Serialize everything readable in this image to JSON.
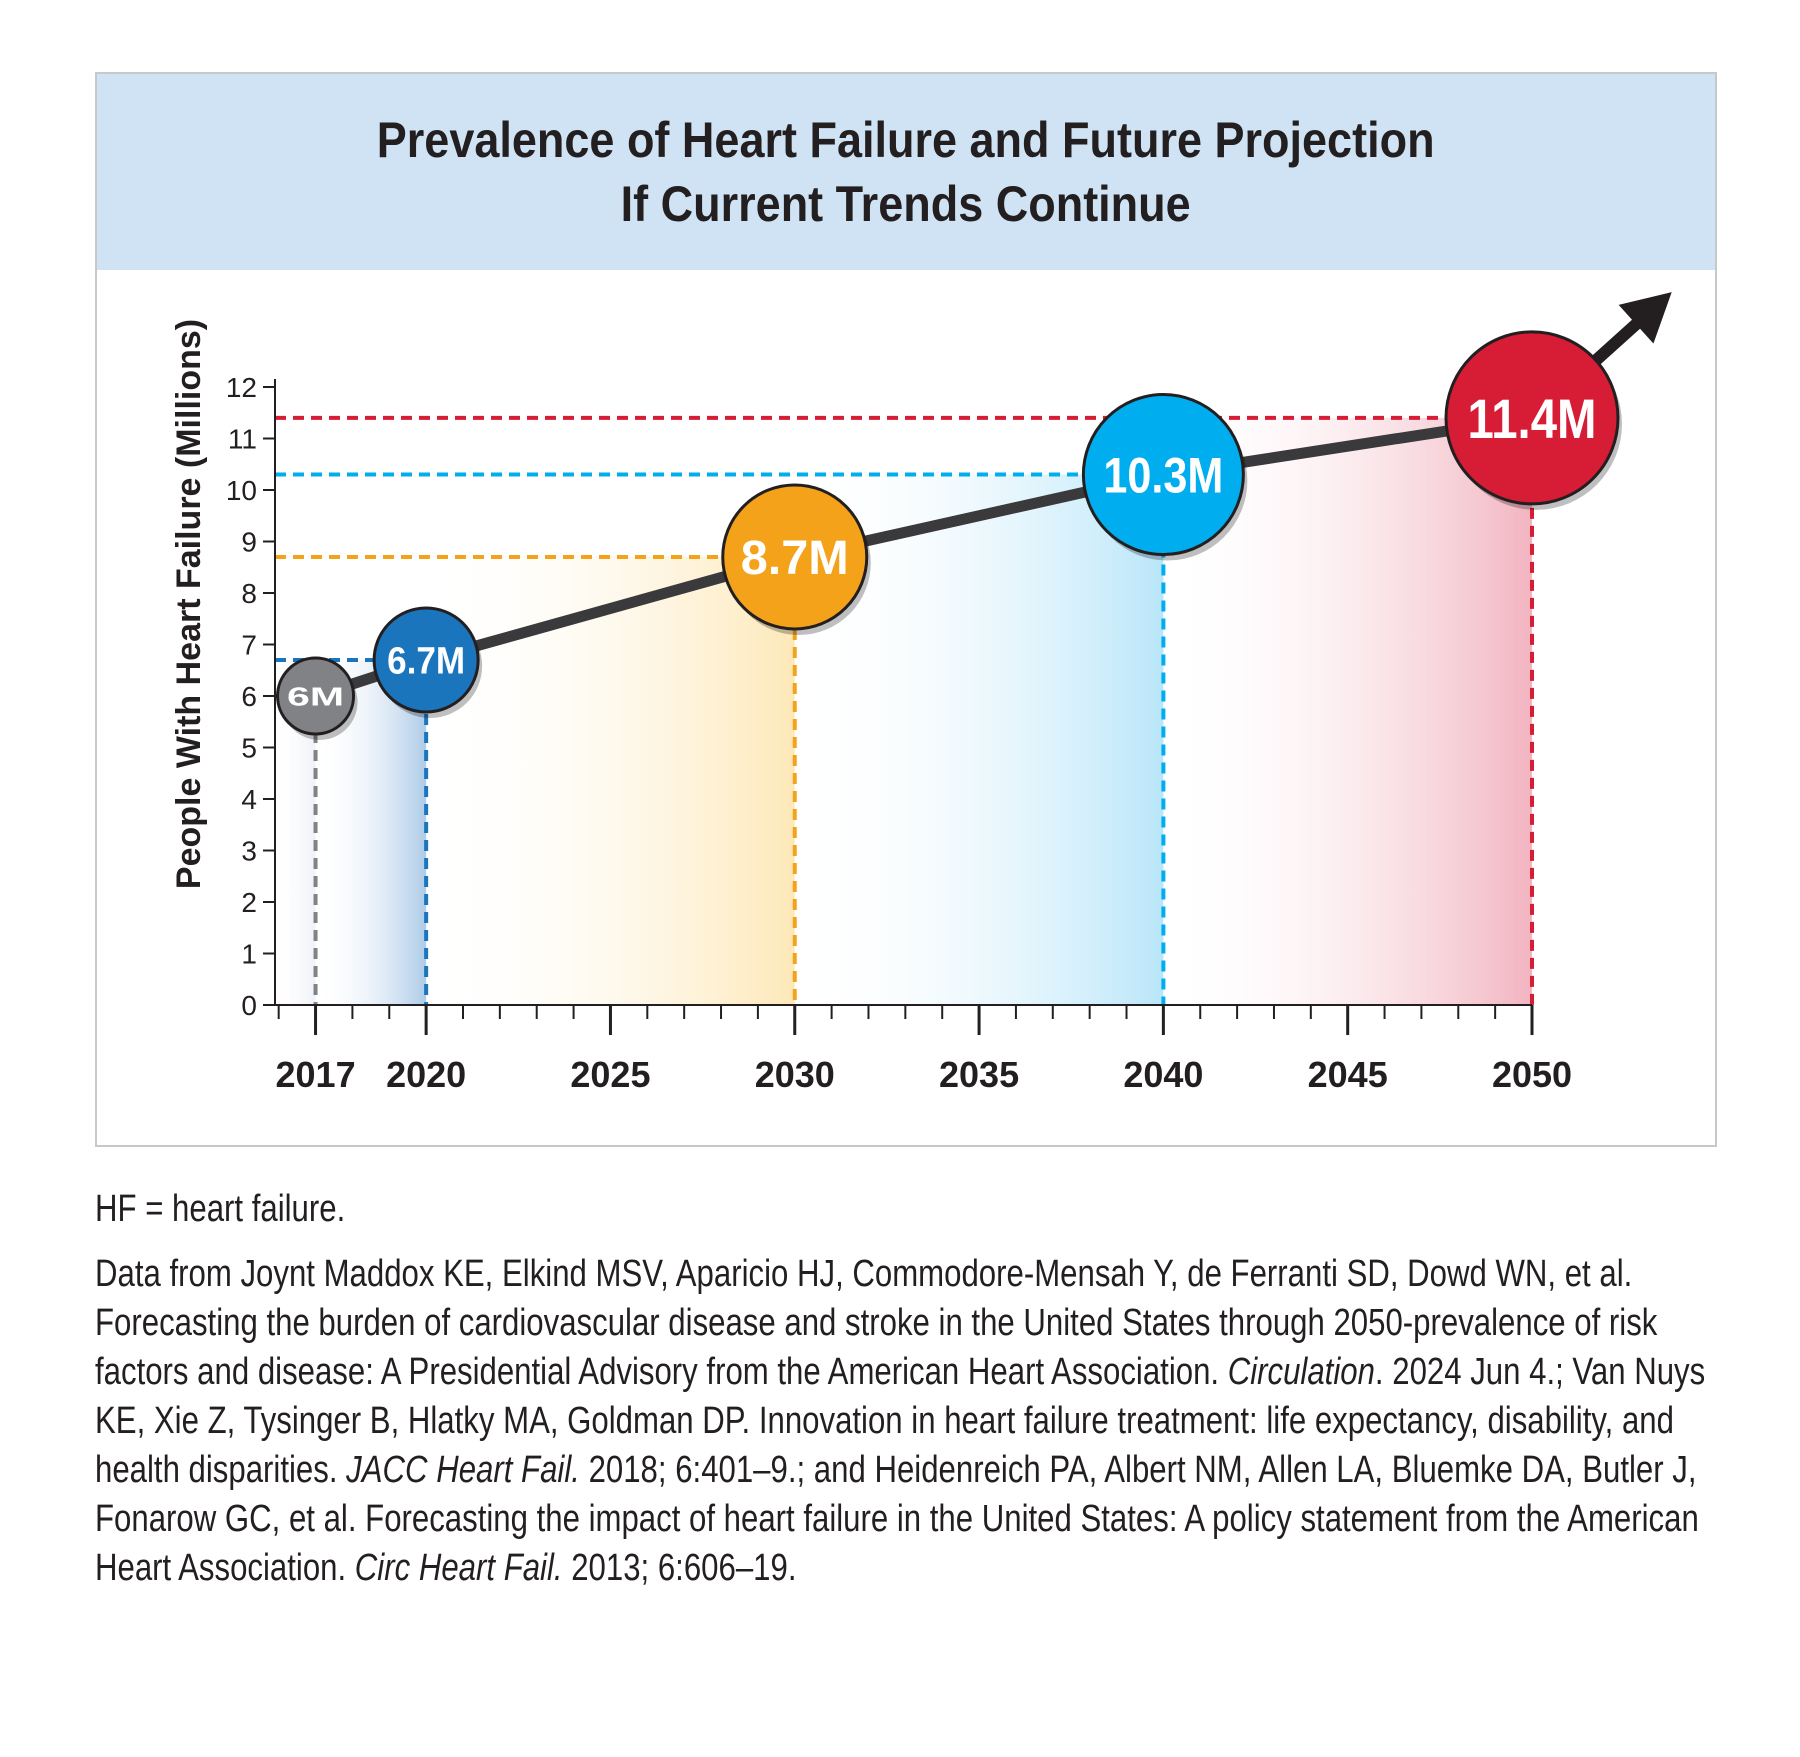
{
  "chart_data": {
    "type": "line",
    "title_lines": [
      "Prevalence of Heart Failure and Future Projection",
      "If Current Trends Continue"
    ],
    "ylabel": "People With Heart Failure (Millions)",
    "xlabel": "",
    "ylim": [
      0,
      12
    ],
    "y_ticks": [
      "0",
      "1",
      "2",
      "3",
      "4",
      "5",
      "6",
      "7",
      "8",
      "9",
      "10",
      "11",
      "12"
    ],
    "xlim": [
      2015.9,
      2050
    ],
    "x_ticks": [
      "2017",
      "2020",
      "2025",
      "2030",
      "2035",
      "2040",
      "2045",
      "2050"
    ],
    "grid": false,
    "trend_arrow": true,
    "points": [
      {
        "x": 2017,
        "y": 6.0,
        "label": "6M",
        "color": "#808285",
        "fill_color": "#eef1f8"
      },
      {
        "x": 2020,
        "y": 6.7,
        "label": "6.7M",
        "color": "#1b75bc",
        "fill_color": "#aecbe8"
      },
      {
        "x": 2030,
        "y": 8.7,
        "label": "8.7M",
        "color": "#f5a21b",
        "fill_color": "#fde8b8"
      },
      {
        "x": 2040,
        "y": 10.3,
        "label": "10.3M",
        "color": "#00aeef",
        "fill_color": "#b9e6f9"
      },
      {
        "x": 2050,
        "y": 11.4,
        "label": "11.4M",
        "color": "#d71c35",
        "fill_color": "#f2b4c0"
      }
    ]
  },
  "caption": {
    "abbreviation": "HF = heart failure.",
    "source_parts": [
      {
        "text": "Data from Joynt Maddox KE, Elkind MSV, Aparicio HJ, Commodore-Mensah Y, de Ferranti SD, Dowd WN, et al. Forecasting the burden of cardiovascular disease and stroke in the United States through 2050-prevalence of risk factors and disease: A Presidential Advisory from the American Heart Association. ",
        "italic": false
      },
      {
        "text": "Circulation",
        "italic": true
      },
      {
        "text": ". 2024 Jun 4.; Van Nuys KE, Xie Z, Tysinger B, Hlatky MA, Goldman DP. Innovation in heart failure treatment: life expectancy, disability, and health disparities. ",
        "italic": false
      },
      {
        "text": "JACC Heart Fail.",
        "italic": true
      },
      {
        "text": " 2018; 6:401–9.; and Heidenreich PA, Albert NM, Allen LA, Bluemke DA, Butler J, Fonarow GC, et al. Forecasting the impact of heart failure in the United States: A policy statement from the American Heart Association. ",
        "italic": false
      },
      {
        "text": "Circ Heart Fail.",
        "italic": true
      },
      {
        "text": " 2013; 6:606–19.",
        "italic": false
      }
    ]
  }
}
